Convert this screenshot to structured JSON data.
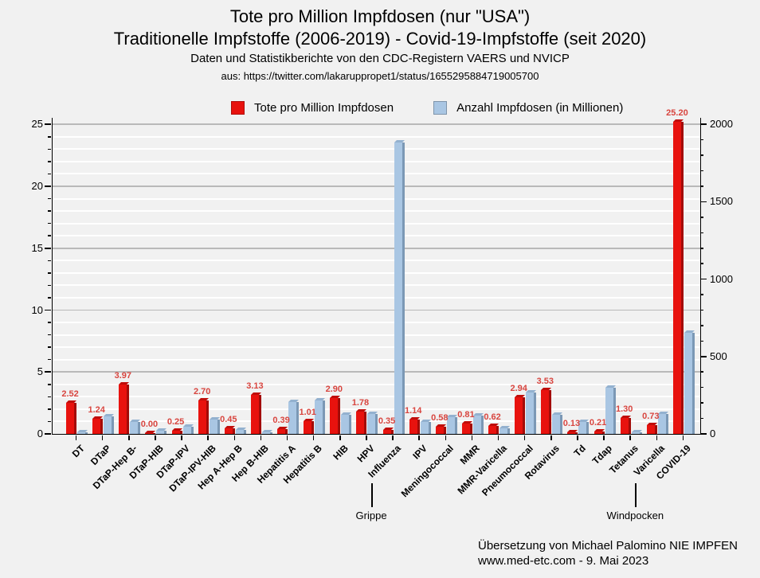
{
  "header": {
    "title_line1": "Tote pro Million Impfdosen (nur \"USA\")",
    "title_line2": "Traditionelle Impfstoffe (2006-2019) - Covid-19-Impfstoffe (seit 2020)",
    "subtitle": "Daten und Statistikberichte von den CDC-Registern VAERS und NVICP",
    "source": "aus: https://twitter.com/lakaruppropet1/status/1655295884719005700"
  },
  "legend": {
    "items": [
      {
        "label": "Tote pro Million Impfdosen",
        "color": "#e8120e"
      },
      {
        "label": "Anzahl Impfdosen (in Millionen)",
        "color": "#a9c6e3"
      }
    ]
  },
  "chart_data": {
    "type": "bar",
    "title": "Tote pro Million Impfdosen (nur \"USA\")",
    "categories": [
      "DT",
      "DTaP",
      "DTaP-Hep B-",
      "DTaP-HIB",
      "DTaP-IPV",
      "DTaP-IPV-HIB",
      "Hep A-Hep B",
      "Hep B-HIB",
      "Hepatitis A",
      "Hepatitis B",
      "HIB",
      "HPV",
      "Influenza",
      "IPV",
      "Meningococcal",
      "MMR",
      "MMR-Varicella",
      "Pneumococcal",
      "Rotavirus",
      "Td",
      "Tdap",
      "Tetanus",
      "Varicella",
      "COVID-19"
    ],
    "series": [
      {
        "name": "Tote pro Million Impfdosen",
        "axis": "left",
        "color": "#e8120e",
        "values": [
          2.52,
          1.24,
          3.97,
          0.0,
          0.25,
          2.7,
          0.45,
          3.13,
          0.39,
          1.01,
          2.9,
          1.78,
          0.35,
          1.14,
          0.58,
          0.81,
          0.62,
          2.94,
          3.53,
          0.13,
          0.21,
          1.3,
          0.73,
          25.2
        ],
        "labels": [
          "2.52",
          "1.24",
          "3.97",
          "0.00",
          "0.25",
          "2.70",
          "0.45",
          "3.13",
          "0.39",
          "1.01",
          "2.90",
          "1.78",
          "0.35",
          "1.14",
          "0.58",
          "0.81",
          "0.62",
          "2.94",
          "3.53",
          "0.13",
          "0.21",
          "1.30",
          "0.73",
          "25.20"
        ]
      },
      {
        "name": "Anzahl Impfdosen (in Millionen)",
        "axis": "right",
        "color": "#a9c6e3",
        "values": [
          12,
          115,
          75,
          20,
          45,
          92,
          28,
          8,
          205,
          215,
          125,
          128,
          1885,
          76,
          108,
          116,
          34,
          268,
          124,
          76,
          296,
          8,
          128,
          655
        ]
      }
    ],
    "left_axis": {
      "ticks": [
        0,
        5,
        10,
        15,
        20,
        25
      ],
      "minor_step": 1,
      "range": [
        0,
        25.5
      ]
    },
    "right_axis": {
      "ticks": [
        0,
        500,
        1000,
        1500,
        2000
      ],
      "minor_step": 100,
      "range": [
        0,
        2040
      ]
    },
    "grid": true,
    "legend_position": "top",
    "annotations": [
      {
        "text": "Grippe",
        "category": "Influenza"
      },
      {
        "text": "Windpocken",
        "category": "Varicella"
      }
    ]
  },
  "footer": {
    "line1": "Übersetzung von Michael Palomino NIE IMPFEN",
    "line2": "www.med-etc.com - 9. Mai 2023"
  }
}
